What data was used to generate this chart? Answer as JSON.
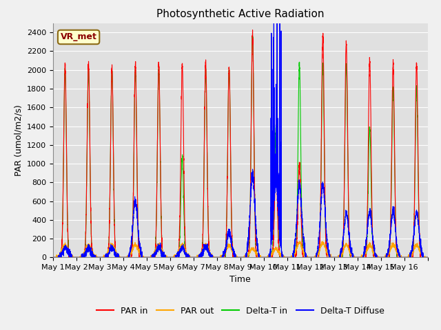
{
  "title": "Photosynthetic Active Radiation",
  "ylabel": "PAR (umol/m2/s)",
  "xlabel": "Time",
  "annotation": "VR_met",
  "ylim": [
    0,
    2500
  ],
  "legend_labels": [
    "PAR in",
    "PAR out",
    "Delta-T in",
    "Delta-T Diffuse"
  ],
  "legend_colors": [
    "#ff0000",
    "#ffa500",
    "#00cc00",
    "#0000ff"
  ],
  "line_width": 0.8,
  "fig_bg_color": "#f0f0f0",
  "plot_bg_color": "#e0e0e0",
  "grid_color": "#ffffff",
  "num_days": 16,
  "x_tick_labels": [
    "May 1",
    "May 2",
    "May 3",
    "May 4",
    "May 5",
    "May 6",
    "May 7",
    "May 8",
    "May 9",
    "May 10",
    "May 11",
    "May 12",
    "May 13",
    "May 14",
    "May 15",
    "May 16"
  ],
  "yticks": [
    0,
    200,
    400,
    600,
    800,
    1000,
    1200,
    1400,
    1600,
    1800,
    2000,
    2200,
    2400
  ],
  "title_fontsize": 11,
  "label_fontsize": 9,
  "tick_fontsize": 8,
  "annotation_fontsize": 9
}
